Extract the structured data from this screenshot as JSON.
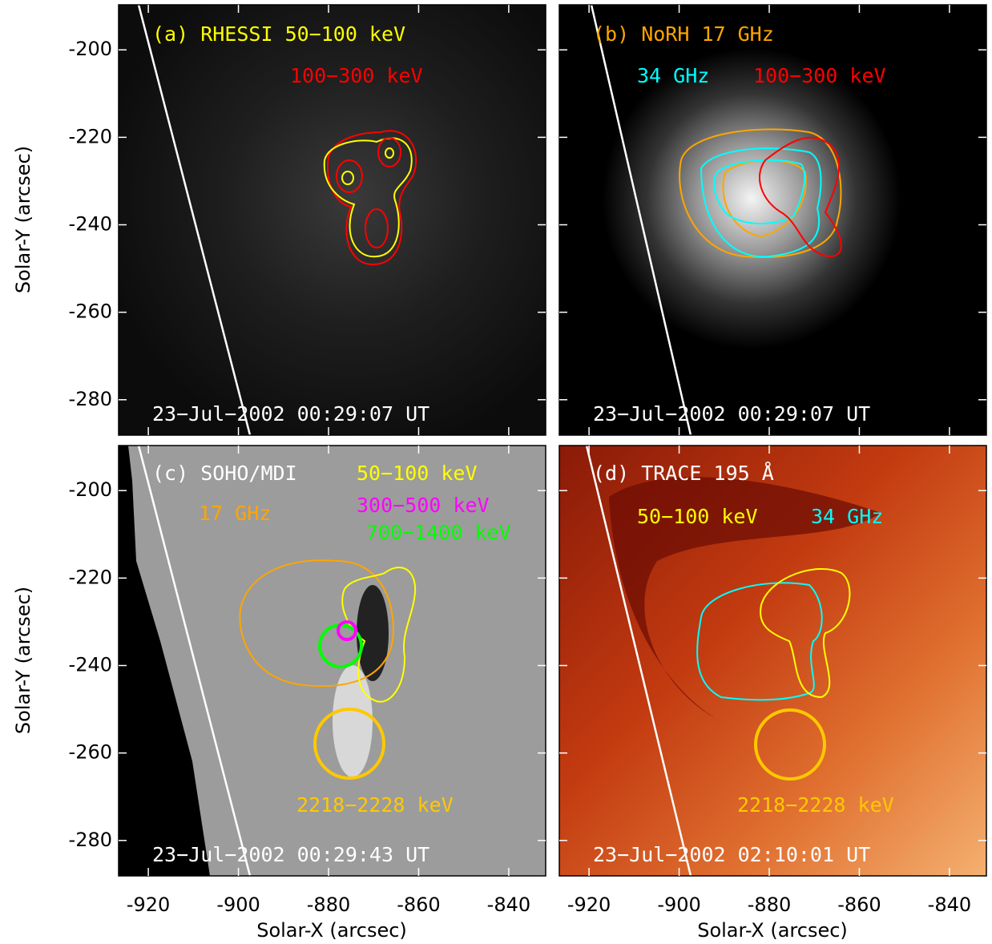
{
  "axes": {
    "xlabel": "Solar-X (arcsec)",
    "ylabel": "Solar-Y (arcsec)",
    "xlim": [
      -926.6,
      -831.8
    ],
    "ylim": [
      -288.1,
      -189.7
    ],
    "xticks": [
      -920,
      -900,
      -880,
      -860,
      -840
    ],
    "yticks": [
      -280,
      -260,
      -240,
      -220,
      -200
    ]
  },
  "panels": [
    {
      "title": "(a) RHESSI 50−100 keV",
      "legend": [
        "100−300 keV"
      ],
      "time": "23−Jul−2002 00:29:07 UT"
    },
    {
      "title": "(b) NoRH 17 GHz",
      "legend": [
        "34 GHz",
        "100−300 keV"
      ],
      "time": "23−Jul−2002 00:29:07 UT"
    },
    {
      "title": "(c) SOHO/MDI",
      "legend": [
        "50−100 keV",
        "17 GHz",
        "300−500 keV",
        "700−1400 keV",
        "2218−2228 keV"
      ],
      "time": "23−Jul−2002 00:29:43 UT"
    },
    {
      "title": "(d) TRACE 195 Å",
      "legend": [
        "50−100 keV",
        "34 GHz",
        "2218−2228 keV"
      ],
      "time": "23−Jul−2002 02:10:01 UT"
    }
  ]
}
